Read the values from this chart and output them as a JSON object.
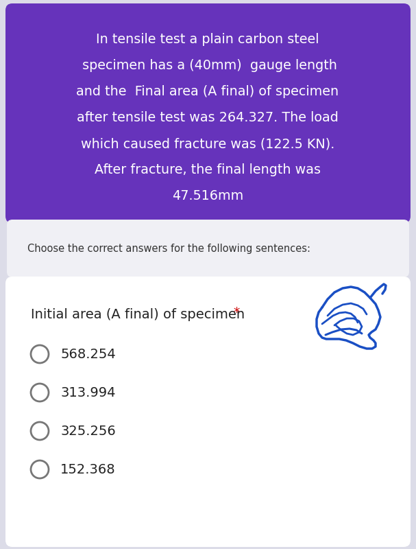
{
  "background_color": "#dcdce8",
  "purple_box_color": "#6633bb",
  "purple_box_lines": [
    "In tensile test a plain carbon steel",
    " specimen has a (40mm)  gauge length",
    "and the  Final area (A final) of specimen",
    "after tensile test was 264.327. The load",
    "which caused fracture was (122.5 KN).",
    "After fracture, the final length was",
    "47.516mm"
  ],
  "purple_text_color": "#ffffff",
  "middle_box_color": "#f0f0f5",
  "middle_box_text": "Choose the correct answers for the following sentences:",
  "middle_text_color": "#333333",
  "question_box_color": "#ffffff",
  "question_title": "Initial area (A final) of specimen ",
  "question_title_star": "*",
  "question_title_color": "#222222",
  "star_color": "#cc0000",
  "options": [
    "568.254",
    "313.994",
    "325.256",
    "152.368"
  ],
  "option_text_color": "#222222",
  "radio_color": "#777777",
  "blue_color": "#1a4fc4"
}
